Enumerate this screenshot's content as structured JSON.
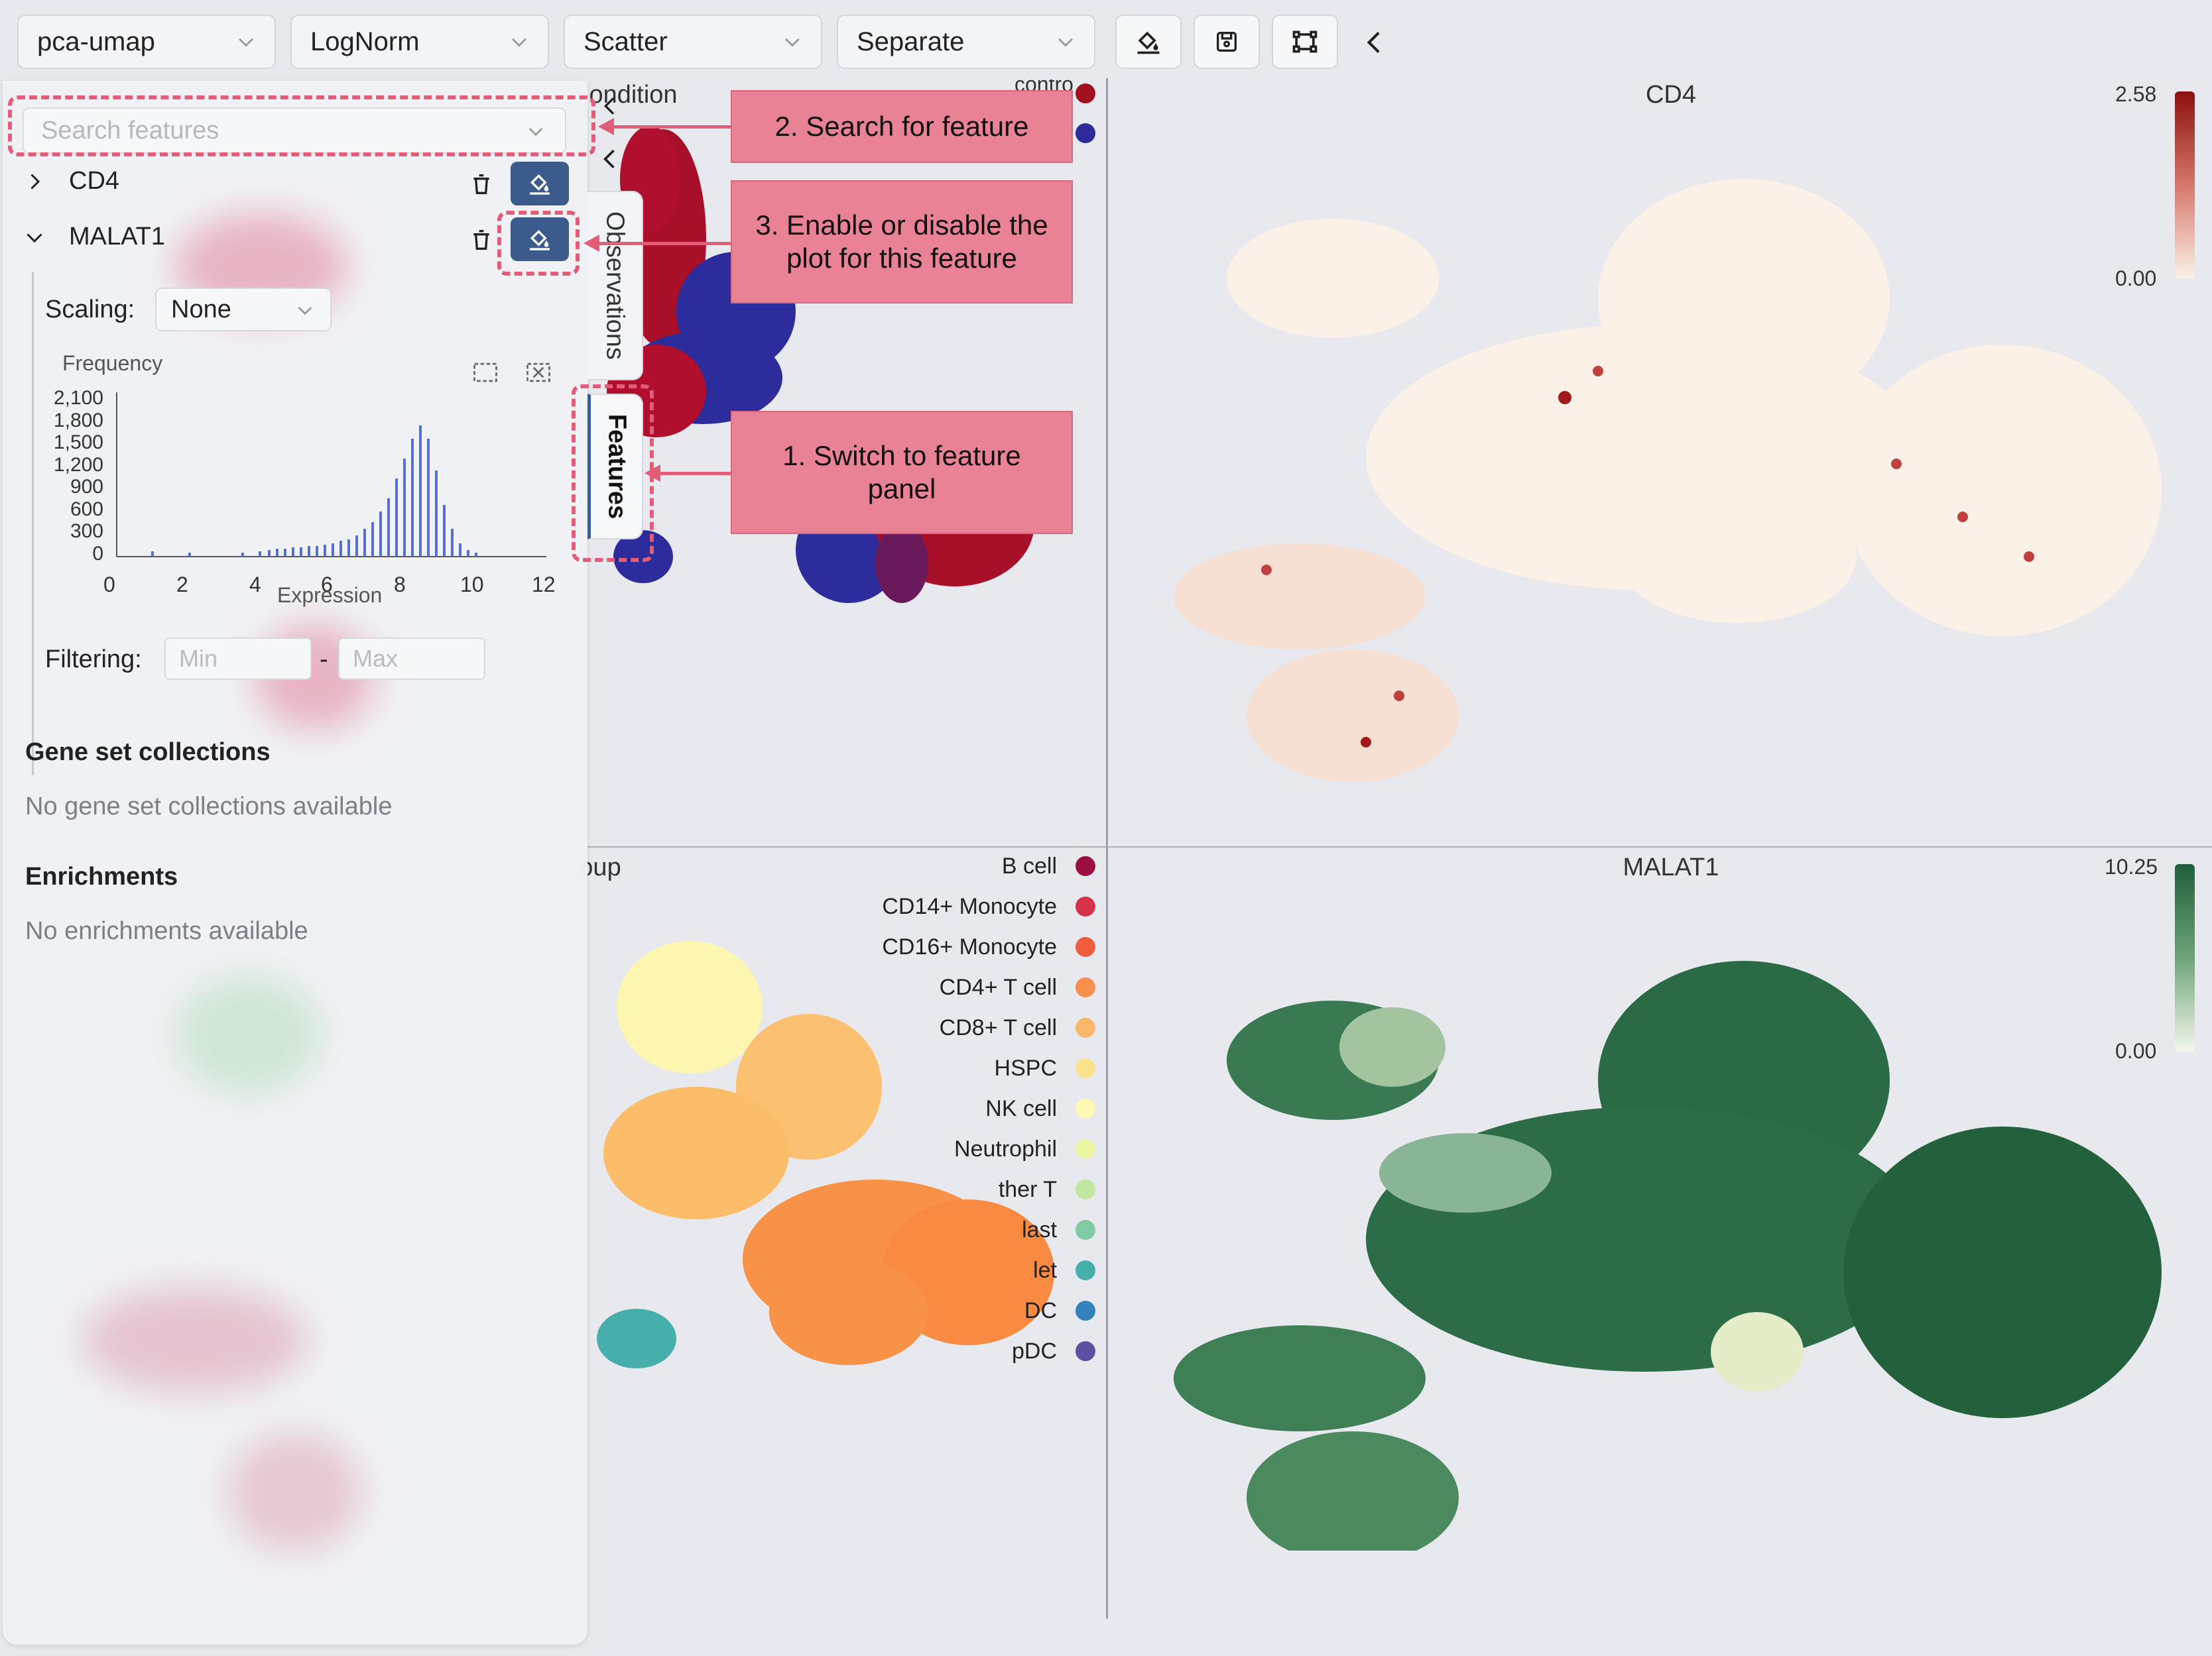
{
  "toolbar": {
    "embedding": "pca-umap",
    "normalization": "LogNorm",
    "plot_type": "Scatter",
    "layout": "Separate",
    "icons": [
      "paint-bucket-icon",
      "save-icon",
      "fit-view-icon",
      "collapse-left-icon"
    ]
  },
  "panel": {
    "search_placeholder": "Search features",
    "features": [
      {
        "name": "CD4",
        "expanded": false
      },
      {
        "name": "MALAT1",
        "expanded": true
      }
    ],
    "scaling_label": "Scaling:",
    "scaling_value": "None",
    "histogram": {
      "title": "Frequency",
      "xlabel": "Expression",
      "y_ticks": [
        "2,100",
        "1,800",
        "1,500",
        "1,200",
        "900",
        "600",
        "300",
        "0"
      ],
      "x_ticks": [
        "0",
        "2",
        "4",
        "6",
        "8",
        "10",
        "12"
      ]
    },
    "filtering_label": "Filtering:",
    "min_placeholder": "Min",
    "max_placeholder": "Max",
    "dash": "-",
    "gene_sets_title": "Gene set collections",
    "gene_sets_empty": "No gene set collections available",
    "enrichments_title": "Enrichments",
    "enrichments_empty": "No enrichments available"
  },
  "tabs": {
    "observations": "Observations",
    "features": "Features"
  },
  "plots": {
    "top_left_title_partial": "ondition",
    "top_left_legend_partial": "control",
    "top_right_title": "CD4",
    "cd4_max": "2.58",
    "cd4_min": "0.00",
    "bottom_left_title_partial": "oup",
    "bottom_right_title": "MALAT1",
    "malat1_max": "10.25",
    "malat1_min": "0.00",
    "colors": {
      "cd4_high": "#a01a1a",
      "cd4_low": "#fbf1e6",
      "malat1_high": "#1f5e3a",
      "malat1_low": "#f4f8ec"
    }
  },
  "cell_types": [
    {
      "label": "B cell",
      "color": "#9b1040"
    },
    {
      "label": "CD14+ Monocyte",
      "color": "#d6334b"
    },
    {
      "label": "CD16+ Monocyte",
      "color": "#ee5d3e"
    },
    {
      "label": "CD4+ T cell",
      "color": "#f6904c"
    },
    {
      "label": "CD8+ T cell",
      "color": "#fbb86a"
    },
    {
      "label": "HSPC",
      "color": "#fbe08d"
    },
    {
      "label": "NK cell",
      "color": "#fdf8b3"
    },
    {
      "label": "Neutrophil",
      "color": "#ecf5a2"
    },
    {
      "label": "ther T",
      "color": "#bfe7a0"
    },
    {
      "label": "last",
      "color": "#80cba4"
    },
    {
      "label": "let",
      "color": "#46aeab"
    },
    {
      "label": "DC",
      "color": "#3581bd"
    },
    {
      "label": "pDC",
      "color": "#5e4fa2"
    }
  ],
  "annotations": {
    "search": "2. Search for feature",
    "toggle": "3. Enable or disable the plot for this feature",
    "switch": "1. Switch to feature panel"
  }
}
